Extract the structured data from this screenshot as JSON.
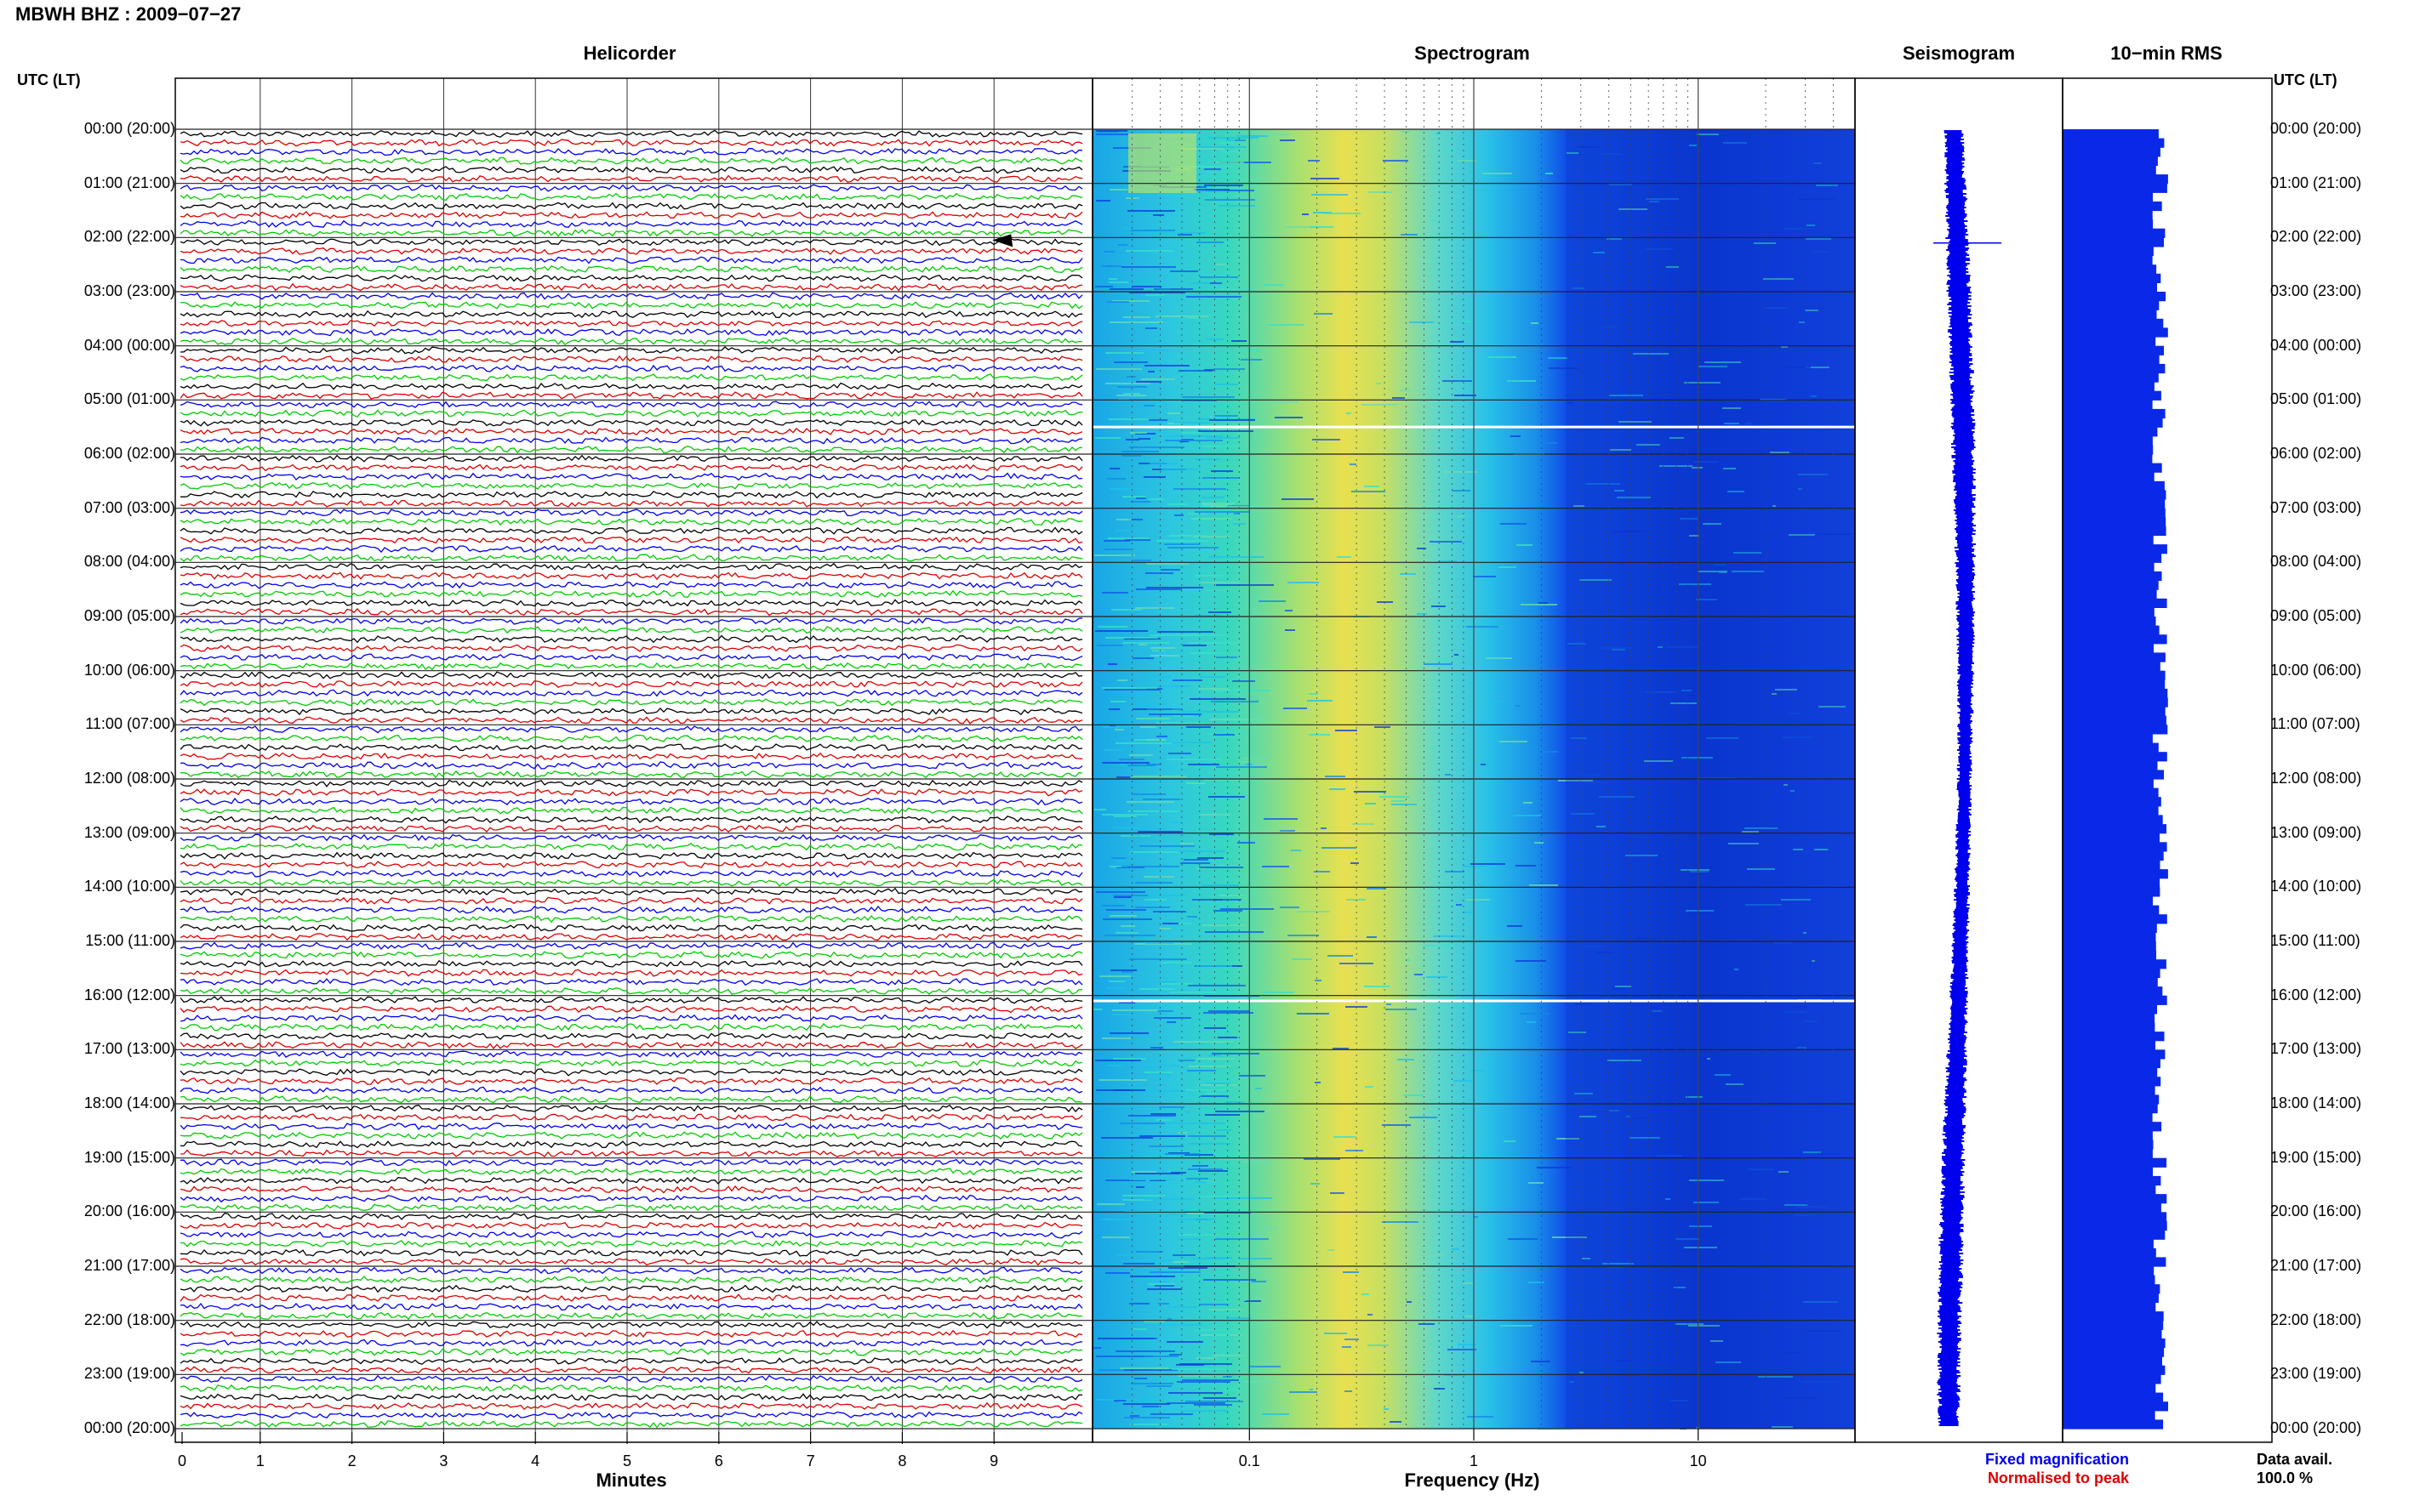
{
  "title": "MBWH BHZ : 2009−07−27",
  "panels": {
    "helicorder": "Helicorder",
    "spectrogram": "Spectrogram",
    "seismogram": "Seismogram",
    "rms": "10−min RMS"
  },
  "axis": {
    "utc_header_left": "UTC (LT)",
    "utc_header_right": "UTC (LT)",
    "minutes_label": "Minutes",
    "frequency_label": "Frequency (Hz)",
    "minute_ticks": [
      "0",
      "1",
      "2",
      "3",
      "4",
      "5",
      "6",
      "7",
      "8",
      "9"
    ],
    "freq_ticks": [
      "0.1",
      "1",
      "10"
    ]
  },
  "hour_labels": [
    "00:00 (20:00)",
    "01:00 (21:00)",
    "02:00 (22:00)",
    "03:00 (23:00)",
    "04:00 (00:00)",
    "05:00 (01:00)",
    "06:00 (02:00)",
    "07:00 (03:00)",
    "08:00 (04:00)",
    "09:00 (05:00)",
    "10:00 (06:00)",
    "11:00 (07:00)",
    "12:00 (08:00)",
    "13:00 (09:00)",
    "14:00 (10:00)",
    "15:00 (11:00)",
    "16:00 (12:00)",
    "17:00 (13:00)",
    "18:00 (14:00)",
    "19:00 (15:00)",
    "20:00 (16:00)",
    "21:00 (17:00)",
    "22:00 (18:00)",
    "23:00 (19:00)",
    "00:00 (20:00)"
  ],
  "legend": {
    "fixed": "Fixed magnification",
    "normalised": "Normalised to peak",
    "fixed_color": "#0000ee",
    "normalised_color": "#dd0000"
  },
  "data_availability": {
    "label": "Data avail.",
    "value": "100.0 %"
  },
  "trace_colors": [
    "#000000",
    "#dd0000",
    "#0000ee",
    "#00cc00"
  ],
  "chart_data": [
    {
      "type": "line",
      "name": "helicorder",
      "x_unit": "minutes",
      "xlim": [
        0,
        10
      ],
      "rows": 144,
      "rows_per_hour": 6,
      "hours": 24,
      "event": {
        "hour": 2,
        "minute": 9.0
      }
    },
    {
      "type": "heatmap",
      "name": "spectrogram",
      "x_scale": "log",
      "xlim": [
        0.02,
        50
      ],
      "dominant_band_hz": [
        0.18,
        0.35
      ],
      "gaps_hours": [
        5.5,
        16.1
      ]
    },
    {
      "type": "line",
      "name": "seismogram",
      "event_hour": 2.1
    },
    {
      "type": "bar",
      "name": "10-min RMS",
      "bins": 144,
      "relative_level_range": [
        0.85,
        1.0
      ]
    }
  ]
}
